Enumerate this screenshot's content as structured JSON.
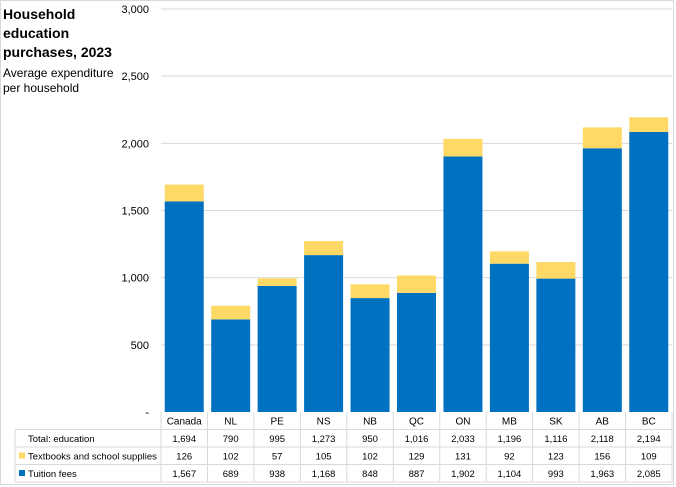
{
  "chart_data": {
    "type": "bar",
    "stacked": true,
    "title": "Household education purchases, 2023",
    "ylabel": "Average expenditure per household",
    "ylim": [
      0,
      3000
    ],
    "yticks": [
      "-",
      "500",
      "1,000",
      "1,500",
      "2,000",
      "2,500",
      "3,000"
    ],
    "grid": true,
    "categories": [
      "Canada",
      "NL",
      "PE",
      "NS",
      "NB",
      "QC",
      "ON",
      "MB",
      "SK",
      "AB",
      "BC"
    ],
    "series": [
      {
        "name": "Tuition fees",
        "color": "#0070c0",
        "values": [
          1567,
          689,
          938,
          1168,
          848,
          887,
          1902,
          1104,
          993,
          1963,
          2085
        ],
        "labels": [
          "1,567",
          "689",
          "938",
          "1,168",
          "848",
          "887",
          "1,902",
          "1,104",
          "993",
          "1,963",
          "2,085"
        ]
      },
      {
        "name": "Textbooks and school supplies",
        "color": "#ffd966",
        "values": [
          126,
          102,
          57,
          105,
          102,
          129,
          131,
          92,
          123,
          156,
          109
        ],
        "labels": [
          "126",
          "102",
          "57",
          "105",
          "102",
          "129",
          "131",
          "92",
          "123",
          "156",
          "109"
        ]
      }
    ],
    "total": {
      "name": "Total: education",
      "labels": [
        "1,694",
        "790",
        "995",
        "1,273",
        "950",
        "1,016",
        "2,033",
        "1,196",
        "1,116",
        "2,118",
        "2,194"
      ]
    }
  }
}
